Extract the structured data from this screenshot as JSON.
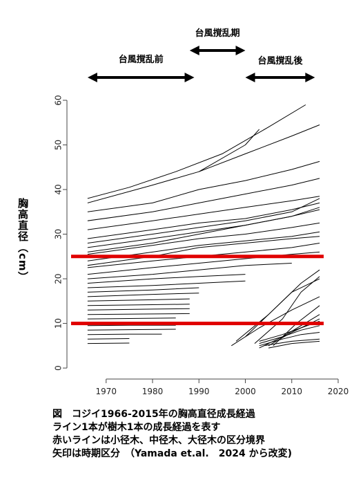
{
  "chart_data": {
    "type": "line",
    "title": "",
    "xlabel": "",
    "ylabel": "胸高直径（cm）",
    "xlim": [
      1962,
      2020
    ],
    "ylim": [
      -2,
      60
    ],
    "xticks": [
      1970,
      1980,
      1990,
      2000,
      2010,
      2020
    ],
    "yticks": [
      0,
      10,
      20,
      30,
      40,
      50,
      60
    ],
    "grid": false,
    "legend": "none",
    "periods": [
      {
        "label": "台風撹乱前",
        "x": [
          1966,
          1989
        ]
      },
      {
        "label": "台風撹乱期",
        "x": [
          1988,
          2000
        ]
      },
      {
        "label": "台風撹乱後",
        "x": [
          2000,
          2015
        ]
      }
    ],
    "reference_lines": [
      {
        "y": 10,
        "color": "#e00000"
      },
      {
        "y": 25,
        "color": "#e00000"
      }
    ],
    "series": [
      {
        "x": [
          1966,
          1975,
          1985,
          1995,
          2005,
          2013
        ],
        "y": [
          38,
          40.5,
          44,
          48,
          54,
          59
        ]
      },
      {
        "x": [
          1966,
          1980,
          1990,
          2000,
          2010,
          2016
        ],
        "y": [
          37,
          41,
          44,
          48,
          52,
          54.5
        ]
      },
      {
        "x": [
          1966,
          1980,
          1990,
          2000,
          2010,
          2016
        ],
        "y": [
          35,
          37,
          40,
          42,
          44.5,
          46.3
        ]
      },
      {
        "x": [
          1966,
          1980,
          1990,
          2000,
          2010,
          2016
        ],
        "y": [
          33,
          35,
          37,
          39,
          41,
          42.5
        ]
      },
      {
        "x": [
          1966,
          1980,
          1990,
          2000,
          2010,
          2016
        ],
        "y": [
          31,
          33,
          34.5,
          36,
          37.5,
          38.5
        ]
      },
      {
        "x": [
          1966,
          1980,
          1990,
          2000,
          2010,
          2016
        ],
        "y": [
          29,
          31,
          32.5,
          33.5,
          35.5,
          37
        ]
      },
      {
        "x": [
          1966,
          1980,
          1990,
          2000,
          2010,
          2016
        ],
        "y": [
          27,
          29,
          30.5,
          32,
          34,
          35.5
        ]
      },
      {
        "x": [
          1966,
          1980,
          1990,
          2000,
          2010,
          2016
        ],
        "y": [
          25.5,
          27.5,
          29,
          30,
          31.5,
          32.5
        ]
      },
      {
        "x": [
          1966,
          1980,
          1990,
          2000,
          2010,
          2016
        ],
        "y": [
          24,
          26,
          27.5,
          28.5,
          29.5,
          30.5
        ]
      },
      {
        "x": [
          1966,
          1980,
          1990,
          2000,
          2010,
          2016
        ],
        "y": [
          22.5,
          24,
          25,
          26,
          27,
          28
        ]
      },
      {
        "x": [
          1966,
          1980,
          1990,
          2000,
          2010,
          2016
        ],
        "y": [
          21,
          22.5,
          23.5,
          24.5,
          25.5,
          26
        ]
      },
      {
        "x": [
          1966,
          1980,
          1990,
          2000,
          2010
        ],
        "y": [
          20,
          21,
          22,
          23,
          23.5
        ]
      },
      {
        "x": [
          1966,
          1980,
          1990,
          2000
        ],
        "y": [
          19,
          20,
          20.5,
          21
        ]
      },
      {
        "x": [
          1966,
          1980,
          1990,
          2000
        ],
        "y": [
          18,
          18.5,
          19,
          19.5
        ]
      },
      {
        "x": [
          1966,
          1980,
          1990
        ],
        "y": [
          17,
          17.5,
          18
        ]
      },
      {
        "x": [
          1966,
          1980,
          1990
        ],
        "y": [
          16,
          16.5,
          16.8
        ]
      },
      {
        "x": [
          1966,
          1980,
          1988
        ],
        "y": [
          15,
          15.3,
          15.5
        ]
      },
      {
        "x": [
          1966,
          1980,
          1988
        ],
        "y": [
          14,
          14.2,
          14.3
        ]
      },
      {
        "x": [
          1966,
          1980,
          1988
        ],
        "y": [
          13,
          13.2,
          13.3
        ]
      },
      {
        "x": [
          1966,
          1978,
          1988
        ],
        "y": [
          12,
          12.1,
          12.2
        ]
      },
      {
        "x": [
          1966,
          1975,
          1985
        ],
        "y": [
          11,
          11.1,
          11.2
        ]
      },
      {
        "x": [
          1966,
          1975,
          1985
        ],
        "y": [
          9.5,
          9.6,
          9.6
        ]
      },
      {
        "x": [
          1966,
          1975,
          1985
        ],
        "y": [
          8.5,
          8.6,
          8.7
        ]
      },
      {
        "x": [
          1966,
          1975,
          1982
        ],
        "y": [
          7.5,
          7.6,
          7.6
        ]
      },
      {
        "x": [
          1966,
          1975
        ],
        "y": [
          6.5,
          6.6
        ]
      },
      {
        "x": [
          1966,
          1975
        ],
        "y": [
          5.5,
          5.6
        ]
      },
      {
        "x": [
          1966,
          1980,
          1990,
          2000,
          2010,
          2016
        ],
        "y": [
          26,
          28,
          30,
          32,
          34,
          36
        ]
      },
      {
        "x": [
          1966,
          1980,
          1990,
          2000,
          2010,
          2016
        ],
        "y": [
          23,
          25,
          27,
          28,
          29,
          29.5
        ]
      },
      {
        "x": [
          1966,
          1980,
          1990,
          2000,
          2010,
          2016
        ],
        "y": [
          28,
          30,
          31.5,
          33,
          35,
          38
        ]
      },
      {
        "x": [
          1990,
          2000,
          2003
        ],
        "y": [
          44,
          50,
          53.5
        ]
      },
      {
        "x": [
          1997,
          2003,
          2010,
          2016
        ],
        "y": [
          5,
          9,
          13,
          16
        ]
      },
      {
        "x": [
          1998,
          2005,
          2010,
          2016
        ],
        "y": [
          6,
          12,
          17,
          20
        ]
      },
      {
        "x": [
          2000,
          2006,
          2012,
          2016
        ],
        "y": [
          7,
          13,
          19,
          22
        ]
      },
      {
        "x": [
          2002,
          2008,
          2012,
          2016
        ],
        "y": [
          5.5,
          11,
          17,
          20.5
        ]
      },
      {
        "x": [
          2003,
          2008,
          2012,
          2016
        ],
        "y": [
          4.5,
          7,
          9.5,
          12
        ]
      },
      {
        "x": [
          2003,
          2008,
          2012,
          2016
        ],
        "y": [
          5,
          6.5,
          7.5,
          8
        ]
      },
      {
        "x": [
          2003,
          2008,
          2012,
          2016
        ],
        "y": [
          5.5,
          7,
          8.5,
          9.5
        ]
      },
      {
        "x": [
          2003,
          2008,
          2012,
          2016
        ],
        "y": [
          6,
          7.5,
          9,
          10.5
        ]
      },
      {
        "x": [
          2004,
          2010,
          2016
        ],
        "y": [
          5,
          6,
          6.5
        ]
      },
      {
        "x": [
          2005,
          2010,
          2016
        ],
        "y": [
          4.5,
          5.5,
          6
        ]
      },
      {
        "x": [
          2005,
          2010,
          2016
        ],
        "y": [
          5,
          8,
          11
        ]
      },
      {
        "x": [
          2006,
          2011,
          2016
        ],
        "y": [
          5,
          10,
          14
        ]
      }
    ]
  },
  "caption": {
    "line1": "図　コジイ1966-2015年の胸高直径成長経過",
    "line2": "ライン1本が樹木1本の成長経過を表す",
    "line3": "赤いラインは小径木、中径木、大径木の区分境界",
    "line4": "矢印は時期区分　（Yamada et.al.　2024 から改変)"
  },
  "colors": {
    "series": "#000000",
    "reference": "#e00000"
  }
}
